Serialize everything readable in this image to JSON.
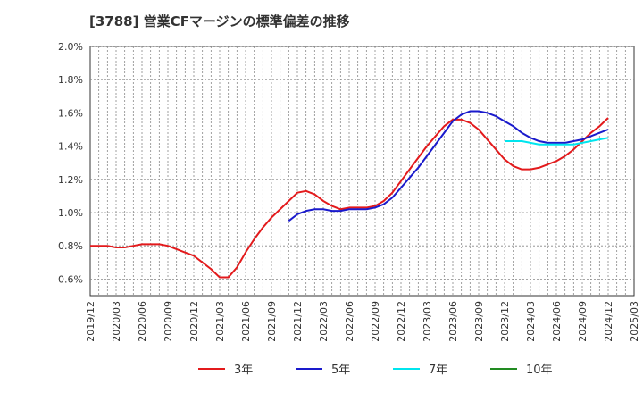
{
  "chart_data": {
    "type": "line",
    "title": "[3788]  営業CFマージンの標準偏差の推移",
    "xlabel": "",
    "ylabel": "",
    "ylim": [
      0.005,
      0.02
    ],
    "yticks": [
      "2.0%",
      "1.8%",
      "1.6%",
      "1.4%",
      "1.2%",
      "1.0%",
      "0.8%",
      "0.6%"
    ],
    "ytick_values": [
      0.02,
      0.018,
      0.016,
      0.014,
      0.012,
      0.01,
      0.008,
      0.006
    ],
    "xticks": [
      "2019/12",
      "2020/03",
      "2020/06",
      "2020/09",
      "2020/12",
      "2021/03",
      "2021/06",
      "2021/09",
      "2021/12",
      "2022/03",
      "2022/06",
      "2022/09",
      "2022/12",
      "2023/03",
      "2023/06",
      "2023/09",
      "2023/12",
      "2024/03",
      "2024/06",
      "2024/09",
      "2024/12",
      "2025/03"
    ],
    "grid": true,
    "legend_position": "bottom",
    "series": [
      {
        "name": "3年",
        "color": "#e31a1c",
        "points": [
          [
            "2019/12",
            0.008
          ],
          [
            "2020/01",
            0.008
          ],
          [
            "2020/02",
            0.008
          ],
          [
            "2020/03",
            0.0079
          ],
          [
            "2020/04",
            0.0079
          ],
          [
            "2020/05",
            0.008
          ],
          [
            "2020/06",
            0.0081
          ],
          [
            "2020/07",
            0.0081
          ],
          [
            "2020/08",
            0.0081
          ],
          [
            "2020/09",
            0.008
          ],
          [
            "2020/10",
            0.0078
          ],
          [
            "2020/11",
            0.0076
          ],
          [
            "2020/12",
            0.0074
          ],
          [
            "2021/01",
            0.007
          ],
          [
            "2021/02",
            0.0066
          ],
          [
            "2021/03",
            0.0061
          ],
          [
            "2021/04",
            0.0061
          ],
          [
            "2021/05",
            0.0067
          ],
          [
            "2021/06",
            0.0076
          ],
          [
            "2021/07",
            0.0084
          ],
          [
            "2021/08",
            0.0091
          ],
          [
            "2021/09",
            0.0097
          ],
          [
            "2021/10",
            0.0102
          ],
          [
            "2021/11",
            0.0107
          ],
          [
            "2021/12",
            0.0112
          ],
          [
            "2022/01",
            0.0113
          ],
          [
            "2022/02",
            0.0111
          ],
          [
            "2022/03",
            0.0107
          ],
          [
            "2022/04",
            0.0104
          ],
          [
            "2022/05",
            0.0102
          ],
          [
            "2022/06",
            0.0103
          ],
          [
            "2022/07",
            0.0103
          ],
          [
            "2022/08",
            0.0103
          ],
          [
            "2022/09",
            0.0104
          ],
          [
            "2022/10",
            0.0107
          ],
          [
            "2022/11",
            0.0112
          ],
          [
            "2022/12",
            0.0119
          ],
          [
            "2023/01",
            0.0126
          ],
          [
            "2023/02",
            0.0133
          ],
          [
            "2023/03",
            0.014
          ],
          [
            "2023/04",
            0.0146
          ],
          [
            "2023/05",
            0.0152
          ],
          [
            "2023/06",
            0.0156
          ],
          [
            "2023/07",
            0.0156
          ],
          [
            "2023/08",
            0.0154
          ],
          [
            "2023/09",
            0.015
          ],
          [
            "2023/10",
            0.0144
          ],
          [
            "2023/11",
            0.0138
          ],
          [
            "2023/12",
            0.0132
          ],
          [
            "2024/01",
            0.0128
          ],
          [
            "2024/02",
            0.0126
          ],
          [
            "2024/03",
            0.0126
          ],
          [
            "2024/04",
            0.0127
          ],
          [
            "2024/05",
            0.0129
          ],
          [
            "2024/06",
            0.0131
          ],
          [
            "2024/07",
            0.0134
          ],
          [
            "2024/08",
            0.0138
          ],
          [
            "2024/09",
            0.0143
          ],
          [
            "2024/10",
            0.0148
          ],
          [
            "2024/11",
            0.0152
          ],
          [
            "2024/12",
            0.0157
          ]
        ]
      },
      {
        "name": "5年",
        "color": "#1a1acc",
        "points": [
          [
            "2021/11",
            0.0095
          ],
          [
            "2021/12",
            0.0099
          ],
          [
            "2022/01",
            0.0101
          ],
          [
            "2022/02",
            0.0102
          ],
          [
            "2022/03",
            0.0102
          ],
          [
            "2022/04",
            0.0101
          ],
          [
            "2022/05",
            0.0101
          ],
          [
            "2022/06",
            0.0102
          ],
          [
            "2022/07",
            0.0102
          ],
          [
            "2022/08",
            0.0102
          ],
          [
            "2022/09",
            0.0103
          ],
          [
            "2022/10",
            0.0105
          ],
          [
            "2022/11",
            0.0109
          ],
          [
            "2022/12",
            0.0115
          ],
          [
            "2023/01",
            0.0121
          ],
          [
            "2023/02",
            0.0127
          ],
          [
            "2023/03",
            0.0134
          ],
          [
            "2023/04",
            0.0141
          ],
          [
            "2023/05",
            0.0148
          ],
          [
            "2023/06",
            0.0155
          ],
          [
            "2023/07",
            0.0159
          ],
          [
            "2023/08",
            0.0161
          ],
          [
            "2023/09",
            0.0161
          ],
          [
            "2023/10",
            0.016
          ],
          [
            "2023/11",
            0.0158
          ],
          [
            "2023/12",
            0.0155
          ],
          [
            "2024/01",
            0.0152
          ],
          [
            "2024/02",
            0.0148
          ],
          [
            "2024/03",
            0.0145
          ],
          [
            "2024/04",
            0.0143
          ],
          [
            "2024/05",
            0.0142
          ],
          [
            "2024/06",
            0.0142
          ],
          [
            "2024/07",
            0.0142
          ],
          [
            "2024/08",
            0.0143
          ],
          [
            "2024/09",
            0.0144
          ],
          [
            "2024/10",
            0.0146
          ],
          [
            "2024/11",
            0.0148
          ],
          [
            "2024/12",
            0.015
          ]
        ]
      },
      {
        "name": "7年",
        "color": "#00e5ee",
        "points": [
          [
            "2023/12",
            0.0143
          ],
          [
            "2024/01",
            0.0143
          ],
          [
            "2024/02",
            0.0143
          ],
          [
            "2024/03",
            0.0142
          ],
          [
            "2024/04",
            0.0141
          ],
          [
            "2024/05",
            0.0141
          ],
          [
            "2024/06",
            0.0141
          ],
          [
            "2024/07",
            0.0141
          ],
          [
            "2024/08",
            0.0141
          ],
          [
            "2024/09",
            0.0142
          ],
          [
            "2024/10",
            0.0143
          ],
          [
            "2024/11",
            0.0144
          ],
          [
            "2024/12",
            0.0145
          ]
        ]
      },
      {
        "name": "10年",
        "color": "#228b22",
        "points": []
      }
    ]
  }
}
